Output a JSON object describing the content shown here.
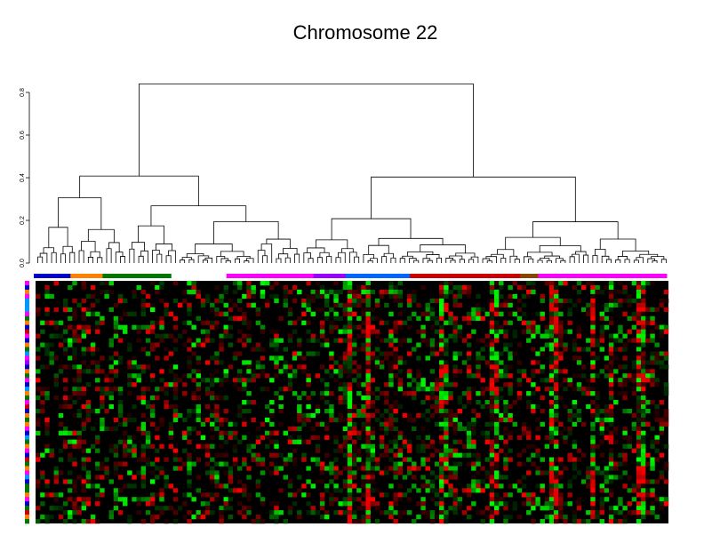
{
  "chart_data": {
    "type": "heatmap",
    "title": "Chromosome 22",
    "dendrogram": {
      "axis_ticks": [
        "0.0",
        "0.2",
        "0.4",
        "0.6",
        "0.8"
      ],
      "ylim": [
        0,
        0.8
      ],
      "leaf_count": 138
    },
    "heatmap": {
      "n_cols": 138,
      "n_rows": 55,
      "color_scale": [
        "green",
        "black",
        "red"
      ]
    },
    "column_groups": [
      {
        "color": "#0000cc",
        "count": 8
      },
      {
        "color": "#ff8000",
        "count": 7
      },
      {
        "color": "#007700",
        "count": 15
      },
      {
        "color": "#ffffff",
        "count": 12
      },
      {
        "color": "#ff00ff",
        "count": 19
      },
      {
        "color": "#9900ff",
        "count": 7
      },
      {
        "color": "#0066ff",
        "count": 14
      },
      {
        "color": "#cc0000",
        "count": 24
      },
      {
        "color": "#884400",
        "count": 4
      },
      {
        "color": "#ff00ff",
        "count": 28
      }
    ],
    "row_side_colors": [
      "#ff00ff",
      "#0000cc",
      "#ff8000",
      "#ff00ff",
      "#0099ff",
      "#0099ff",
      "#0099ff",
      "#ff00ff",
      "#007700",
      "#ff8000",
      "#0000cc",
      "#cc0000",
      "#ff00ff",
      "#0000cc",
      "#ff8000",
      "#007700",
      "#0099ff",
      "#ff00ff",
      "#9900ff",
      "#0000cc",
      "#ff8000",
      "#007700",
      "#ff00ff",
      "#0000cc",
      "#0099ff",
      "#ff8000",
      "#007700",
      "#ff00ff",
      "#cc0000",
      "#0000cc",
      "#ff8000",
      "#007700",
      "#ff8000",
      "#ff00ff",
      "#0000cc",
      "#0099ff",
      "#007700",
      "#ff8000",
      "#ff00ff",
      "#0000cc",
      "#cc0000",
      "#007700",
      "#ff8000",
      "#ff00ff",
      "#0099ff",
      "#0000cc",
      "#007700",
      "#007700",
      "#ff8000",
      "#ff00ff",
      "#0000cc",
      "#007700",
      "#cc0000",
      "#ff8000",
      "#007700"
    ]
  }
}
